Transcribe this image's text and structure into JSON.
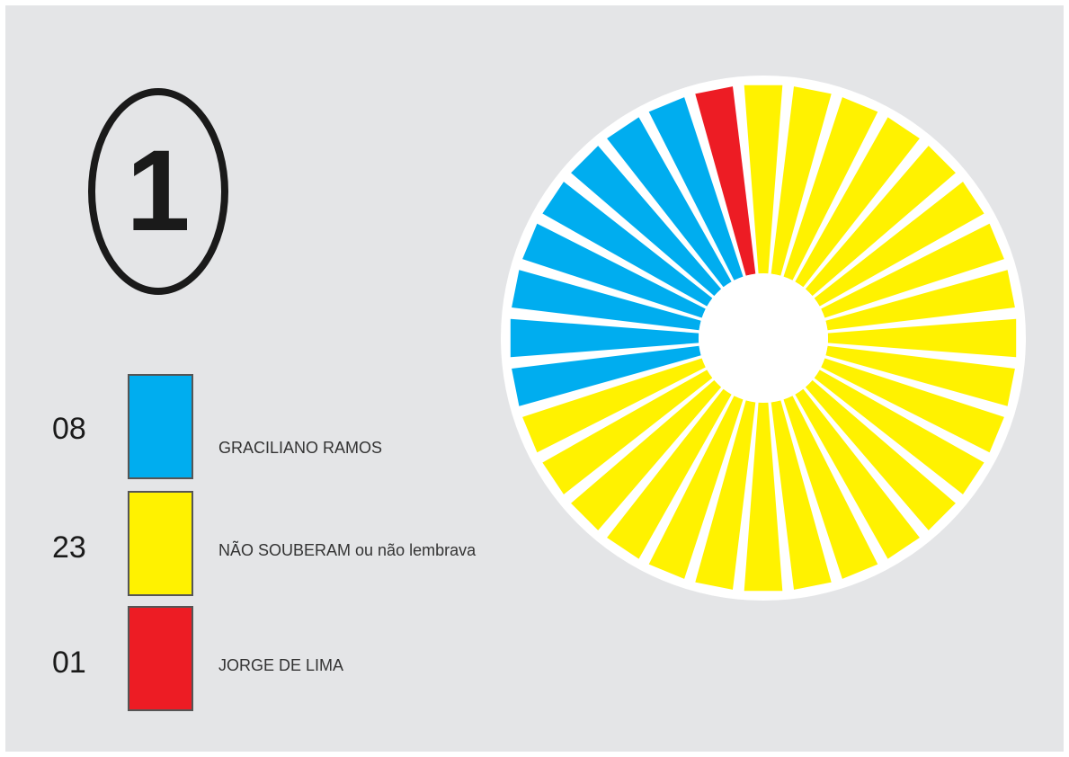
{
  "figure_number": "1",
  "chart_data": {
    "type": "pie",
    "style": "sunburst rays, one ray per respondent",
    "total": 32,
    "series": [
      {
        "name": "GRACILIANO RAMOS",
        "count_label": "08",
        "value": 8,
        "color": "#00adef"
      },
      {
        "name": "NÃO SOUBERAM ou não lembrava",
        "count_label": "23",
        "value": 23,
        "color": "#fff200"
      },
      {
        "name": "JORGE DE LIMA",
        "count_label": "01",
        "value": 1,
        "color": "#ed1c24"
      }
    ],
    "ray_order_clockwise_from_top": [
      "NÃO SOUBERAM ou não lembrava",
      "GRACILIANO RAMOS",
      "JORGE DE LIMA"
    ],
    "legend_position": "left"
  }
}
